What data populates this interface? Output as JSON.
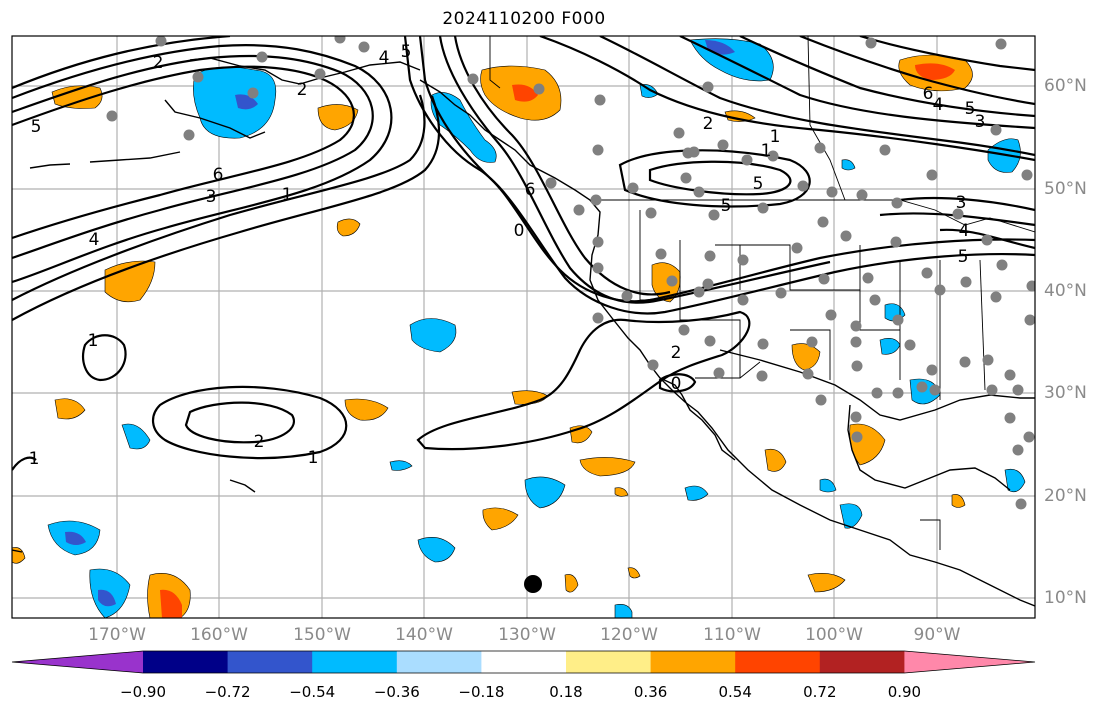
{
  "title": "2024110200 F000",
  "lon_labels": [
    "170°W",
    "160°W",
    "150°W",
    "140°W",
    "130°W",
    "120°W",
    "110°W",
    "100°W",
    "90°W"
  ],
  "lat_labels": [
    "60°N",
    "50°N",
    "40°N",
    "30°N",
    "20°N",
    "10°N"
  ],
  "colorbar": {
    "colors": [
      "#9933cc",
      "#000088",
      "#3355cc",
      "#00bbff",
      "#aaddff",
      "#ffffff",
      "#ffee88",
      "#ffa500",
      "#ff4400",
      "#b22222",
      "#ff88aa"
    ],
    "tick_labels": [
      "−0.90",
      "−0.72",
      "−0.54",
      "−0.36",
      "−0.18",
      "0.18",
      "0.36",
      "0.54",
      "0.72",
      "0.90"
    ]
  },
  "contour_labels": [
    "2",
    "5",
    "4",
    "5",
    "6",
    "3",
    "1",
    "4",
    "1",
    "2",
    "1",
    "1",
    "2",
    "6",
    "0",
    "2",
    "0",
    "5",
    "1",
    "3",
    "5",
    "4",
    "6",
    "5",
    "3",
    "4",
    "5",
    "2",
    "1"
  ],
  "colors": {
    "station": "#808080",
    "grid": "#b0b0b0",
    "marker": "#000000"
  }
}
